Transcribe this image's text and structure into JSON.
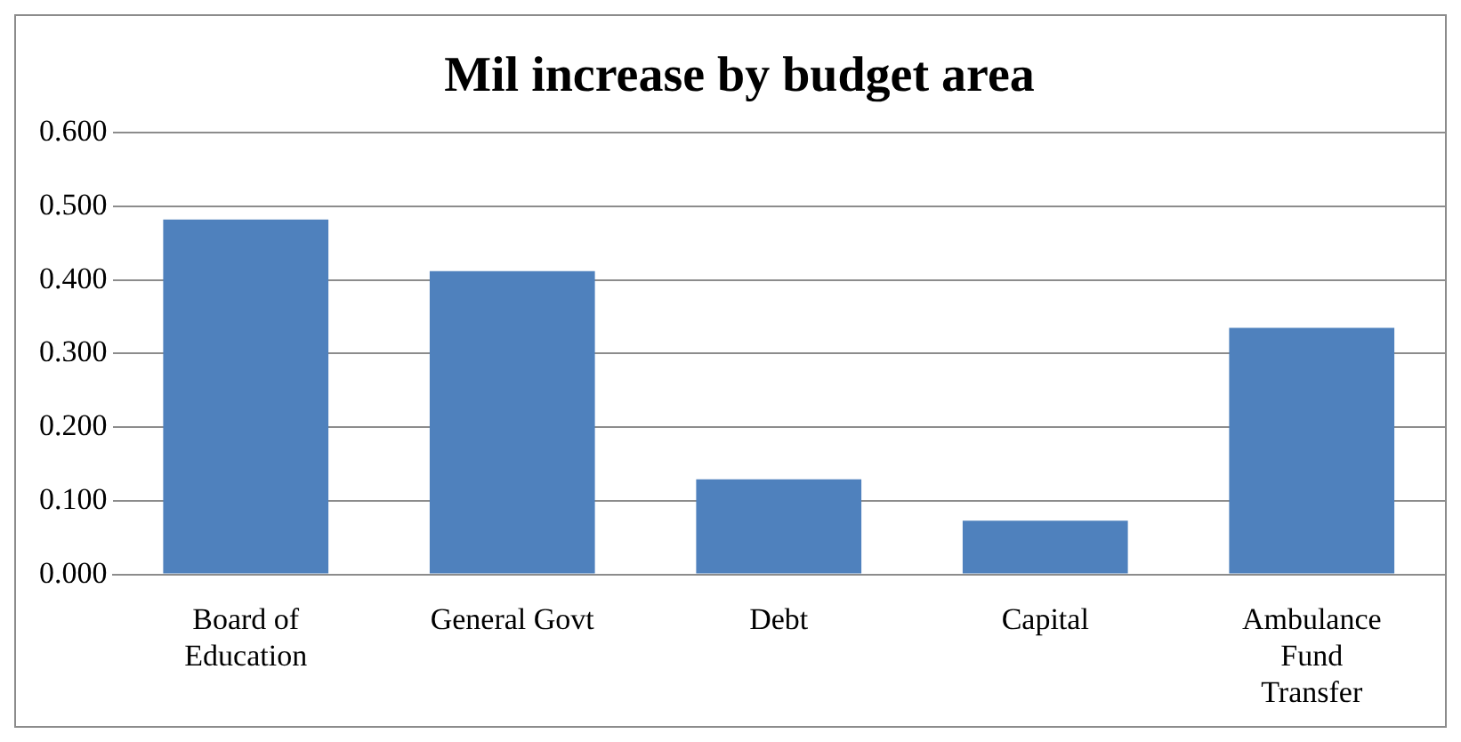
{
  "chart_data": {
    "type": "bar",
    "title": "Mil increase by budget area",
    "categories": [
      "Board of Education",
      "General Govt",
      "Debt",
      "Capital",
      "Ambulance Fund Transfer"
    ],
    "values": [
      0.482,
      0.412,
      0.129,
      0.073,
      0.335
    ],
    "color": "#4f81bd",
    "ylim": [
      0,
      0.6
    ],
    "yticks": [
      {
        "value": 0,
        "label": "0.000"
      },
      {
        "value": 0.1,
        "label": "0.100"
      },
      {
        "value": 0.2,
        "label": "0.200"
      },
      {
        "value": 0.3,
        "label": "0.300"
      },
      {
        "value": 0.4,
        "label": "0.400"
      },
      {
        "value": 0.5,
        "label": "0.500"
      },
      {
        "value": 0.6,
        "label": "0.600"
      }
    ],
    "grid": "y"
  }
}
